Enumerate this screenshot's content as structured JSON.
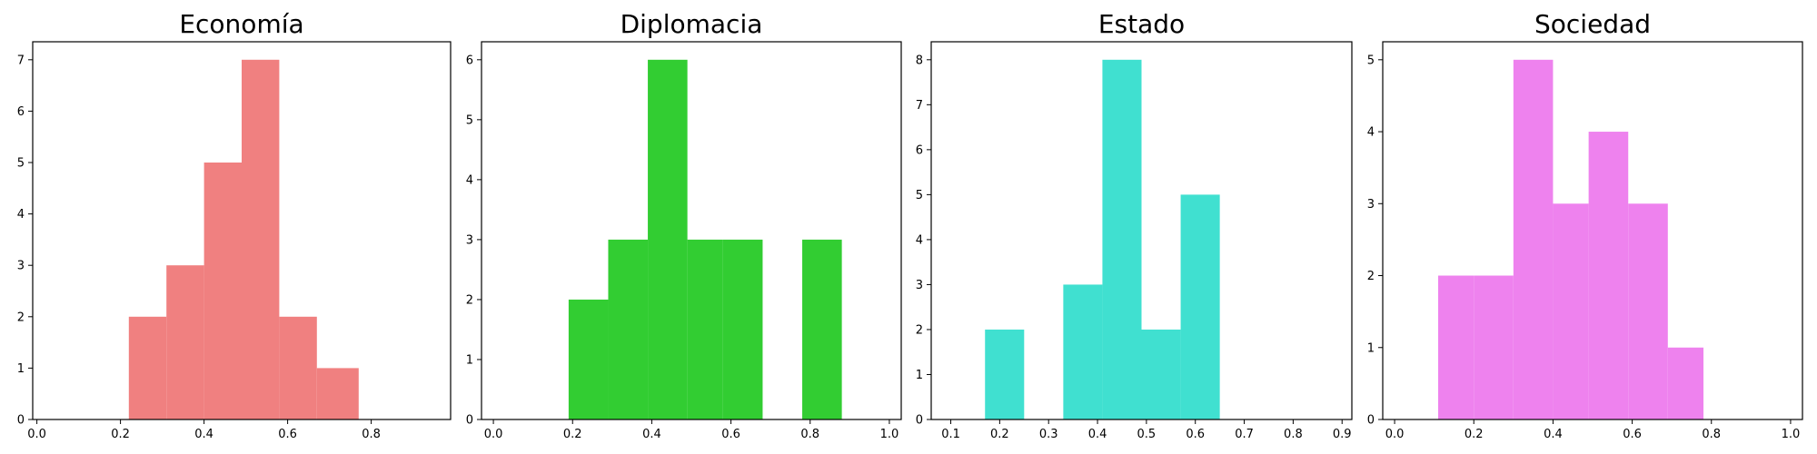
{
  "chart_data": [
    {
      "type": "bar",
      "title": "Economía",
      "color": "#f08080",
      "xlim": [
        -0.01,
        0.99
      ],
      "ylim": [
        0,
        7.35
      ],
      "xticks": [
        0.0,
        0.2,
        0.4,
        0.6,
        0.8
      ],
      "xtick_labels": [
        "0.0",
        "0.2",
        "0.4",
        "0.6",
        "0.8"
      ],
      "yticks": [
        0,
        1,
        2,
        3,
        4,
        5,
        6,
        7
      ],
      "ytick_labels": [
        "0",
        "1",
        "2",
        "3",
        "4",
        "5",
        "6",
        "7"
      ],
      "bins": [
        {
          "x0": 0.22,
          "x1": 0.31,
          "count": 2
        },
        {
          "x0": 0.31,
          "x1": 0.4,
          "count": 3
        },
        {
          "x0": 0.4,
          "x1": 0.49,
          "count": 5
        },
        {
          "x0": 0.49,
          "x1": 0.58,
          "count": 7
        },
        {
          "x0": 0.58,
          "x1": 0.67,
          "count": 2
        },
        {
          "x0": 0.67,
          "x1": 0.77,
          "count": 1
        }
      ]
    },
    {
      "type": "bar",
      "title": "Diplomacia",
      "color": "#32cd32",
      "xlim": [
        -0.03,
        1.03
      ],
      "ylim": [
        0,
        6.3
      ],
      "xticks": [
        0.0,
        0.2,
        0.4,
        0.6,
        0.8,
        1.0
      ],
      "xtick_labels": [
        "0.0",
        "0.2",
        "0.4",
        "0.6",
        "0.8",
        "1.0"
      ],
      "yticks": [
        0,
        1,
        2,
        3,
        4,
        5,
        6
      ],
      "ytick_labels": [
        "0",
        "1",
        "2",
        "3",
        "4",
        "5",
        "6"
      ],
      "bins": [
        {
          "x0": 0.19,
          "x1": 0.29,
          "count": 2
        },
        {
          "x0": 0.29,
          "x1": 0.39,
          "count": 3
        },
        {
          "x0": 0.39,
          "x1": 0.49,
          "count": 6
        },
        {
          "x0": 0.49,
          "x1": 0.58,
          "count": 3
        },
        {
          "x0": 0.58,
          "x1": 0.68,
          "count": 3
        },
        {
          "x0": 0.68,
          "x1": 0.78,
          "count": 0
        },
        {
          "x0": 0.78,
          "x1": 0.88,
          "count": 3
        }
      ]
    },
    {
      "type": "bar",
      "title": "Estado",
      "color": "#40e0d0",
      "xlim": [
        0.06,
        0.92
      ],
      "ylim": [
        0,
        8.4
      ],
      "xticks": [
        0.1,
        0.2,
        0.3,
        0.4,
        0.5,
        0.6,
        0.7,
        0.8,
        0.9
      ],
      "xtick_labels": [
        "0.1",
        "0.2",
        "0.3",
        "0.4",
        "0.5",
        "0.6",
        "0.7",
        "0.8",
        "0.9"
      ],
      "yticks": [
        0,
        1,
        2,
        3,
        4,
        5,
        6,
        7,
        8
      ],
      "ytick_labels": [
        "0",
        "1",
        "2",
        "3",
        "4",
        "5",
        "6",
        "7",
        "8"
      ],
      "bins": [
        {
          "x0": 0.17,
          "x1": 0.25,
          "count": 2
        },
        {
          "x0": 0.25,
          "x1": 0.33,
          "count": 0
        },
        {
          "x0": 0.33,
          "x1": 0.41,
          "count": 3
        },
        {
          "x0": 0.41,
          "x1": 0.49,
          "count": 8
        },
        {
          "x0": 0.49,
          "x1": 0.57,
          "count": 2
        },
        {
          "x0": 0.57,
          "x1": 0.65,
          "count": 5
        }
      ]
    },
    {
      "type": "bar",
      "title": "Sociedad",
      "color": "#ee82ee",
      "xlim": [
        -0.03,
        1.03
      ],
      "ylim": [
        0,
        5.25
      ],
      "xticks": [
        0.0,
        0.2,
        0.4,
        0.6,
        0.8,
        1.0
      ],
      "xtick_labels": [
        "0.0",
        "0.2",
        "0.4",
        "0.6",
        "0.8",
        "1.0"
      ],
      "yticks": [
        0,
        1,
        2,
        3,
        4,
        5
      ],
      "ytick_labels": [
        "0",
        "1",
        "2",
        "3",
        "4",
        "5"
      ],
      "bins": [
        {
          "x0": 0.11,
          "x1": 0.2,
          "count": 2
        },
        {
          "x0": 0.2,
          "x1": 0.3,
          "count": 2
        },
        {
          "x0": 0.3,
          "x1": 0.4,
          "count": 5
        },
        {
          "x0": 0.4,
          "x1": 0.49,
          "count": 3
        },
        {
          "x0": 0.49,
          "x1": 0.59,
          "count": 4
        },
        {
          "x0": 0.59,
          "x1": 0.69,
          "count": 3
        },
        {
          "x0": 0.69,
          "x1": 0.78,
          "count": 1
        }
      ]
    }
  ]
}
